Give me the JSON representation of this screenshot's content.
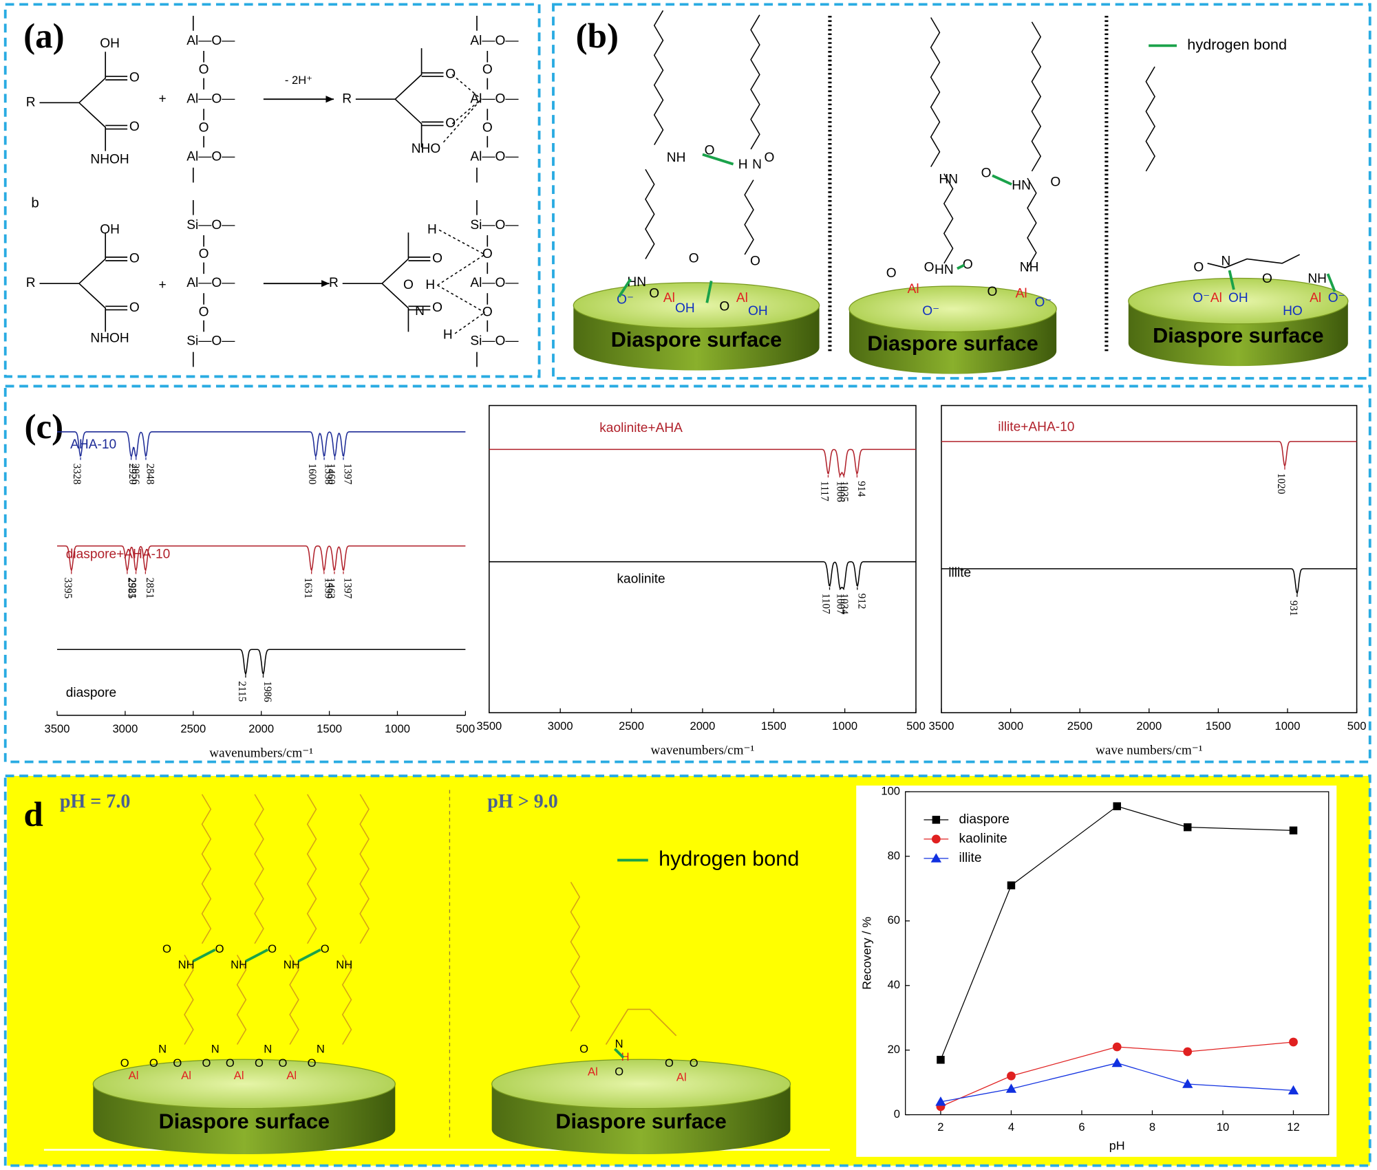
{
  "panel_a": {
    "label": "(a)",
    "scheme_b": "b",
    "arrow_label": "- 2H⁺",
    "r": "R",
    "oh": "OH",
    "o": "O",
    "plus": "+",
    "nhoh": "NHOH",
    "nho": "NHO",
    "al_o": "Al—O—",
    "si_o": "Si—O—",
    "al": "Al",
    "h": "H",
    "n": "N"
  },
  "panel_b": {
    "label": "(b)",
    "legend": "hydrogen bond",
    "surface": "Diaspore surface",
    "nh": "NH",
    "hn": "HN",
    "o": "O",
    "al": "Al",
    "oh": "OH",
    "ho": "HO",
    "n": "N",
    "h": "H",
    "o_minus": "O⁻"
  },
  "panel_c": {
    "label": "(c)"
  },
  "panel_d": {
    "label": "d",
    "left_title": "pH = 7.0",
    "right_title": "pH > 9.0",
    "legend": "hydrogen bond",
    "surface": "Diaspore surface",
    "nh": "NH",
    "n": "N",
    "al": "Al",
    "o": "O",
    "h": "H"
  },
  "chart_data": [
    {
      "type": "spectrum",
      "xlabel": "wavenumbers/cm⁻¹",
      "xlim": [
        3500,
        500
      ],
      "xticks": [
        3500,
        3000,
        2500,
        2000,
        1500,
        1000,
        500
      ],
      "series": [
        {
          "name": "AHA-10",
          "color": "#1c2a96",
          "peaks": [
            3328,
            2956,
            2920,
            2848,
            1600,
            1538,
            1460,
            1397
          ]
        },
        {
          "name": "diaspore+AHA-10",
          "color": "#b0202a",
          "peaks": [
            3395,
            2985,
            2921,
            2851,
            1631,
            1539,
            1463,
            1397
          ]
        },
        {
          "name": "diaspore",
          "color": "#000000",
          "peaks": [
            2115,
            1986
          ]
        }
      ]
    },
    {
      "type": "spectrum",
      "xlabel": "wavenumbers/cm⁻¹",
      "xlim": [
        3500,
        500
      ],
      "xticks": [
        3500,
        3000,
        2500,
        2000,
        1500,
        1000,
        500
      ],
      "series": [
        {
          "name": "kaolinite+AHA",
          "color": "#b0202a",
          "peaks": [
            1117,
            1035,
            1006,
            914
          ]
        },
        {
          "name": "kaolinite",
          "color": "#000000",
          "peaks": [
            1107,
            1034,
            1007,
            912
          ]
        }
      ]
    },
    {
      "type": "spectrum",
      "xlabel": "wave numbers/cm⁻¹",
      "xlim": [
        3500,
        500
      ],
      "xticks": [
        3500,
        3000,
        2500,
        2000,
        1500,
        1000,
        500
      ],
      "series": [
        {
          "name": "illite+AHA-10",
          "color": "#b0202a",
          "peaks": [
            1020
          ]
        },
        {
          "name": "illite",
          "color": "#000000",
          "peaks": [
            931
          ]
        }
      ]
    },
    {
      "type": "line",
      "xlabel": "pH",
      "ylabel": "Recovery / %",
      "x": [
        2,
        4,
        7,
        9,
        12
      ],
      "xlim": [
        1,
        13
      ],
      "xticks": [
        2,
        4,
        6,
        8,
        10,
        12
      ],
      "ylim": [
        0,
        100
      ],
      "yticks": [
        0,
        20,
        40,
        60,
        80,
        100
      ],
      "series": [
        {
          "name": "diaspore",
          "color": "#000000",
          "marker": "square",
          "values": [
            17,
            71,
            95.5,
            89,
            88
          ]
        },
        {
          "name": "kaolinite",
          "color": "#e02020",
          "marker": "circle",
          "values": [
            2.5,
            12,
            21,
            19.5,
            22.5
          ]
        },
        {
          "name": "illite",
          "color": "#1030e0",
          "marker": "triangle",
          "values": [
            4,
            8,
            16,
            9.5,
            7.5
          ]
        }
      ]
    }
  ]
}
